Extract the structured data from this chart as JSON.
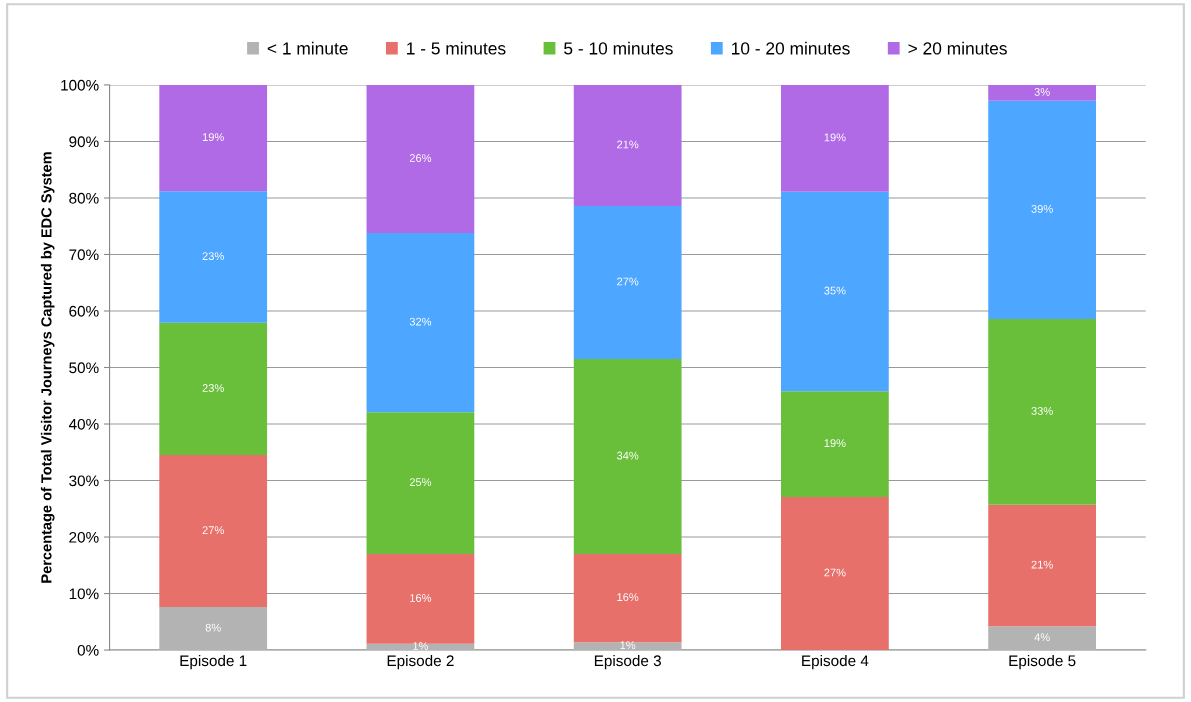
{
  "chart_data": {
    "type": "bar",
    "stacked": true,
    "ylabel": "Percentage of Total Visitor Journeys Captured by EDC System",
    "categories": [
      "Episode 1",
      "Episode 2",
      "Episode 3",
      "Episode 4",
      "Episode 5"
    ],
    "series": [
      {
        "name": "< 1 minute",
        "color": "#b3b3b3",
        "values": [
          7.6,
          1.1,
          1.4,
          0,
          4.2
        ],
        "value_labels": [
          "8%",
          "1%",
          "1%",
          null,
          "4%"
        ]
      },
      {
        "name": "1 - 5 minutes",
        "color": "#e8706b",
        "values": [
          26.9,
          15.9,
          15.6,
          27.1,
          21.5
        ],
        "value_labels": [
          "27%",
          "16%",
          "16%",
          "27%",
          "21%"
        ]
      },
      {
        "name": "5 - 10 minutes",
        "color": "#6abf3a",
        "values": [
          23.4,
          25.1,
          34.5,
          18.7,
          32.9
        ],
        "value_labels": [
          "23%",
          "25%",
          "34%",
          "19%",
          "33%"
        ]
      },
      {
        "name": "10 - 20 minutes",
        "color": "#4da6ff",
        "values": [
          23.3,
          31.7,
          27.1,
          35.3,
          38.6
        ],
        "value_labels": [
          "23%",
          "32%",
          "27%",
          "35%",
          "39%"
        ]
      },
      {
        "name": "> 20 minutes",
        "color": "#b06ae6",
        "values": [
          18.8,
          26.2,
          21.4,
          18.9,
          2.8
        ],
        "value_labels": [
          "19%",
          "26%",
          "21%",
          "19%",
          "3%"
        ]
      }
    ],
    "ylim": [
      0,
      100
    ],
    "yticks": [
      {
        "value": 0,
        "label": "0%"
      },
      {
        "value": 10,
        "label": "10%"
      },
      {
        "value": 20,
        "label": "20%"
      },
      {
        "value": 30,
        "label": "30%"
      },
      {
        "value": 40,
        "label": "40%"
      },
      {
        "value": 50,
        "label": "50%"
      },
      {
        "value": 60,
        "label": "60%"
      },
      {
        "value": 70,
        "label": "70%"
      },
      {
        "value": 80,
        "label": "80%"
      },
      {
        "value": 90,
        "label": "90%"
      },
      {
        "value": 100,
        "label": "100%"
      }
    ],
    "grid": "y",
    "legend": "top"
  }
}
